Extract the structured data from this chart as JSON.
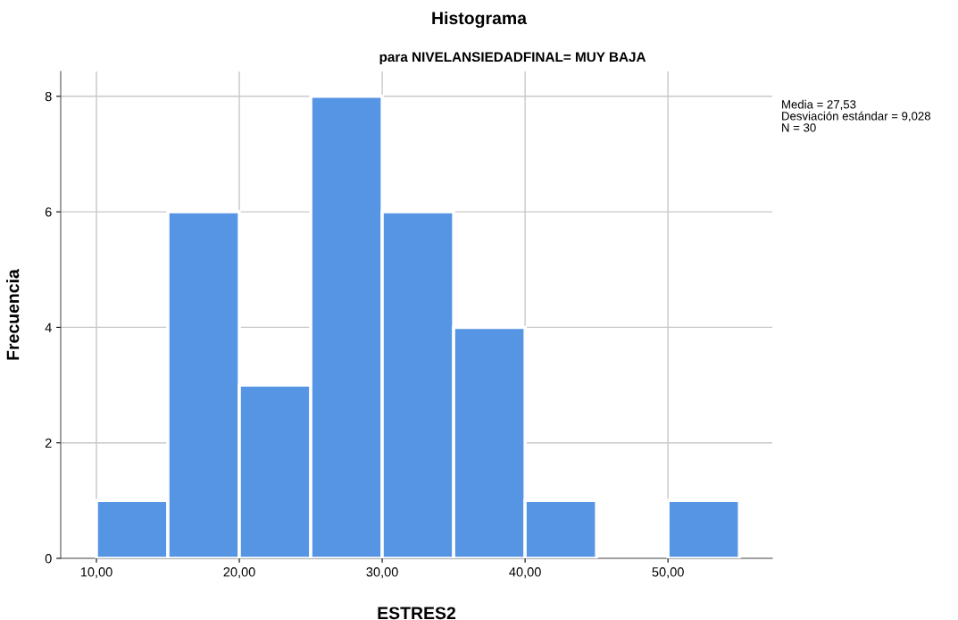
{
  "chart_data": {
    "type": "histogram",
    "title": "Histograma",
    "subtitle": "para NIVELANSIEDADFINAL= MUY BAJA",
    "xlabel": "ESTRES2",
    "ylabel": "Frecuencia",
    "bins": [
      10,
      15,
      20,
      25,
      30,
      35,
      40,
      45,
      50,
      55
    ],
    "values": [
      1,
      6,
      3,
      8,
      6,
      4,
      1,
      0,
      1
    ],
    "color": "#5595e3",
    "xlim": [
      7.5,
      57.3
    ],
    "ylim": [
      0,
      8.43
    ],
    "xticks": [
      {
        "value": 10,
        "label": "10,00"
      },
      {
        "value": 20,
        "label": "20,00"
      },
      {
        "value": 30,
        "label": "30,00"
      },
      {
        "value": 40,
        "label": "40,00"
      },
      {
        "value": 50,
        "label": "50,00"
      }
    ],
    "yticks": [
      0,
      2,
      4,
      6,
      8
    ],
    "grid": true,
    "annotations": [
      "Media = 27,53",
      "Desviación estándar = 9,028",
      "N = 30"
    ]
  }
}
